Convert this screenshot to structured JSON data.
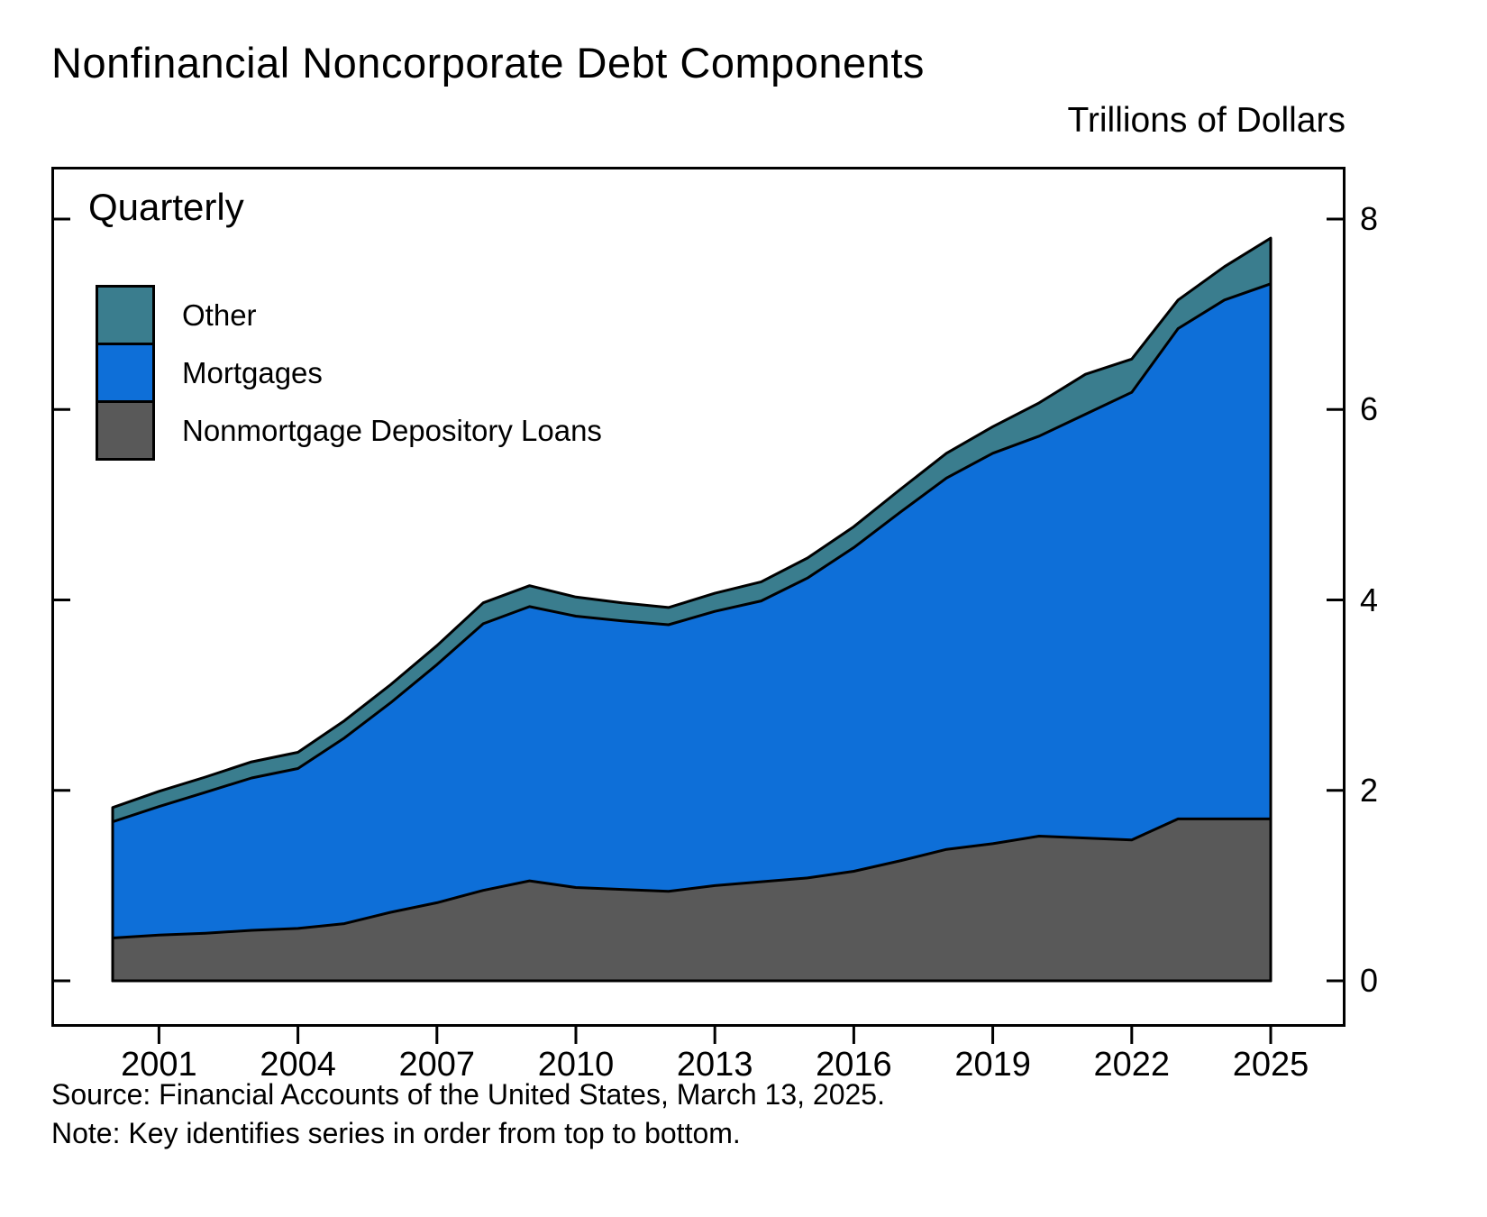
{
  "chart_data": {
    "type": "area",
    "stacked": true,
    "title": "Nonfinancial Noncorporate Debt Components",
    "units_label": "Trillions of Dollars",
    "frequency_label": "Quarterly",
    "grid": false,
    "legend_position": "upper-left-inside",
    "legend_top_to_bottom": [
      "Other",
      "Mortgages",
      "Nonmortgage Depository Loans"
    ],
    "x": [
      2000,
      2001,
      2002,
      2003,
      2004,
      2005,
      2006,
      2007,
      2008,
      2009,
      2010,
      2011,
      2012,
      2013,
      2014,
      2015,
      2016,
      2017,
      2018,
      2019,
      2020,
      2021,
      2022,
      2023,
      2024,
      2025
    ],
    "series": [
      {
        "name": "Nonmortgage Depository Loans",
        "color": "#595959",
        "values": [
          0.45,
          0.48,
          0.5,
          0.53,
          0.55,
          0.6,
          0.72,
          0.82,
          0.95,
          1.05,
          0.98,
          0.96,
          0.94,
          1.0,
          1.04,
          1.08,
          1.15,
          1.26,
          1.38,
          1.44,
          1.52,
          1.5,
          1.48,
          1.7,
          1.7,
          1.7
        ]
      },
      {
        "name": "Mortgages",
        "color": "#0E6FD8",
        "values": [
          1.22,
          1.35,
          1.48,
          1.6,
          1.68,
          1.95,
          2.2,
          2.5,
          2.8,
          2.88,
          2.85,
          2.82,
          2.8,
          2.88,
          2.95,
          3.15,
          3.4,
          3.66,
          3.9,
          4.1,
          4.2,
          4.45,
          4.7,
          5.15,
          5.45,
          5.62
        ]
      },
      {
        "name": "Other",
        "color": "#3A7D8E",
        "values": [
          0.15,
          0.16,
          0.16,
          0.17,
          0.17,
          0.18,
          0.19,
          0.2,
          0.22,
          0.22,
          0.2,
          0.19,
          0.18,
          0.19,
          0.2,
          0.21,
          0.22,
          0.24,
          0.26,
          0.28,
          0.35,
          0.42,
          0.35,
          0.3,
          0.35,
          0.48
        ]
      }
    ],
    "ylim": [
      0,
      8
    ],
    "yticks": [
      0,
      2,
      4,
      6,
      8
    ],
    "xticks": [
      2001,
      2004,
      2007,
      2010,
      2013,
      2016,
      2019,
      2022,
      2025
    ]
  },
  "footer": {
    "source": "Source: Financial Accounts of the United States, March 13, 2025.",
    "note": "Note: Key identifies series in order from top to bottom."
  }
}
